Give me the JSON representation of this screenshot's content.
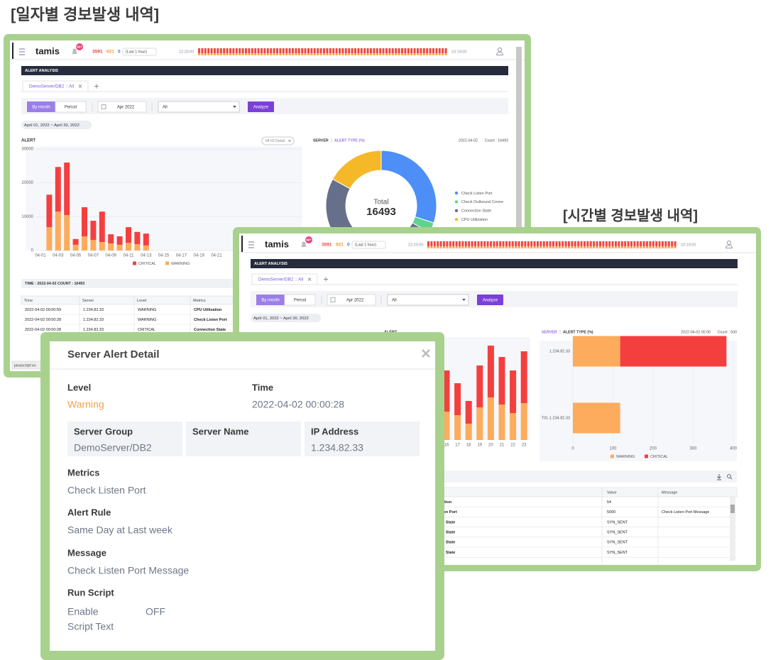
{
  "titles": {
    "daily": "[일자별 경보발생 내역]",
    "hourly": "[시간별 경보발생 내역]"
  },
  "app": {
    "logo": "tamis",
    "badge": "99+",
    "count_red": 3591,
    "count_orange": 921,
    "count_blue": 0,
    "range": "(Last 1 hour)",
    "time_start": "22:20:00",
    "time_end": "23:19:00",
    "section": "ALERT ANALYSIS",
    "tab": "DemoServer/DB2 :: All",
    "mode_month": "By month",
    "mode_period": "Period",
    "month": "Apr 2022",
    "filter": "All",
    "analyze": "Analyze",
    "date_range": "April 01, 2022 ~ April 30, 2022"
  },
  "daily": {
    "alert_chart": {
      "type": "bar",
      "stacked": true,
      "title": "ALERT",
      "detail_button": "04-02 Detail",
      "categories": [
        "04-01",
        null,
        "04-03",
        null,
        "04-05",
        null,
        "04-07",
        null,
        "04-09",
        null,
        "04-11",
        null,
        "04-13",
        null,
        "04-15",
        null,
        "04-17",
        null,
        "04-19",
        null,
        "04-21"
      ],
      "series": [
        {
          "name": "CRITICAL",
          "color": "#f43f3f",
          "values": [
            0,
            9600,
            13200,
            15500,
            1700,
            8600,
            5700,
            9000,
            2700,
            2500,
            4600,
            3600,
            3500,
            0,
            0,
            0,
            0,
            0,
            0,
            0,
            0
          ]
        },
        {
          "name": "WARNING",
          "color": "#fcac5c",
          "values": [
            0,
            6900,
            11500,
            10500,
            1700,
            4200,
            3100,
            2500,
            2100,
            1700,
            2300,
            1900,
            1500,
            0,
            0,
            0,
            0,
            0,
            0,
            0,
            0
          ]
        }
      ],
      "ylim": [
        0,
        30000
      ],
      "yticks": [
        0,
        10000,
        20000,
        30000
      ],
      "grid": true
    },
    "type_chart": {
      "type": "pie",
      "tabs": [
        "SERVER",
        "ALERT TYPE (%)"
      ],
      "date": "2022-04-02",
      "count": "Count : 16493",
      "center_label": "Total",
      "center_value": 16493,
      "categories": [
        "Check Listen Port",
        "Check Outbound Conne",
        "Connection State",
        "CPU Utilization"
      ],
      "values": [
        30,
        3,
        50,
        17
      ],
      "colors": [
        "#4e8ef7",
        "#5fd38d",
        "#66708a",
        "#f5b829"
      ]
    },
    "table": {
      "summary": "TIME : 2022-04-02    COUNT : 16493",
      "columns": [
        "Time",
        "Server",
        "Level",
        "Metrics"
      ],
      "rows": [
        [
          "2022-04-02 00:00:59",
          "1.234.82.33",
          "WARNING",
          "CPU Utilization"
        ],
        [
          "2022-04-02 00:00:28",
          "1.234.82.33",
          "WARNING",
          "Check Listen Port"
        ],
        [
          "2022-04-02 00:00:28",
          "1.234.82.33",
          "CRITICAL",
          "Connection State"
        ]
      ]
    },
    "status": "javascript:vo"
  },
  "hourly": {
    "alert_chart": {
      "type": "bar",
      "stacked": true,
      "title": "ALERT",
      "categories": [
        "16",
        "17",
        "18",
        "19",
        "20",
        "21",
        "22",
        "23"
      ],
      "series": [
        {
          "color": "#fcac5c",
          "values": [
            400,
            350,
            230,
            460,
            600,
            500,
            380,
            520
          ]
        },
        {
          "color": "#f43f3f",
          "values": [
            580,
            450,
            320,
            590,
            730,
            670,
            600,
            730
          ]
        }
      ],
      "ylim": [
        0,
        1500
      ]
    },
    "server_chart": {
      "type": "bar",
      "orientation": "horizontal",
      "stacked": true,
      "tabs": [
        "SERVER",
        "ALERT TYPE (%)"
      ],
      "date": "2022-04-02 00:00",
      "count": "Count : 500",
      "categories": [
        "1.234.82.33",
        "T01-1.234.82.33"
      ],
      "series": [
        {
          "name": "WARNING",
          "color": "#fcac5c",
          "values": [
            118,
            118
          ]
        },
        {
          "name": "CRITICAL",
          "color": "#f43f3f",
          "values": [
            265,
            0
          ]
        }
      ],
      "xlim": [
        0,
        400
      ],
      "xticks": [
        0,
        100,
        200,
        300,
        400
      ]
    },
    "table": {
      "columns": [
        "Value",
        "Message"
      ],
      "rows": [
        {
          "metric": "ation",
          "value": 54
        },
        {
          "metric": "ten Port",
          "value": 5000,
          "message": "Check Listen Port Message"
        },
        {
          "metric": "n State",
          "value": "SYN_SENT"
        },
        {
          "metric": "n State",
          "value": "SYN_SENT"
        },
        {
          "metric": "n State",
          "value": "SYN_SENT"
        },
        {
          "metric": "n State",
          "value": "SYN_SENT"
        }
      ]
    }
  },
  "modal": {
    "title": "Server Alert Detail",
    "level_label": "Level",
    "level": "Warning",
    "time_label": "Time",
    "time": "2022-04-02 00:00:28",
    "server_group_label": "Server Group",
    "server_group": "DemoServer/DB2",
    "server_name_label": "Server Name",
    "ip_label": "IP Address",
    "ip": "1.234.82.33",
    "metrics_label": "Metrics",
    "metrics": "Check Listen Port",
    "rule_label": "Alert Rule",
    "rule": "Same Day at Last week",
    "message_label": "Message",
    "message": "Check Listen Port Message",
    "script_label": "Run Script",
    "enable_label": "Enable",
    "enable": "OFF",
    "script_text_label": "Script Text"
  }
}
